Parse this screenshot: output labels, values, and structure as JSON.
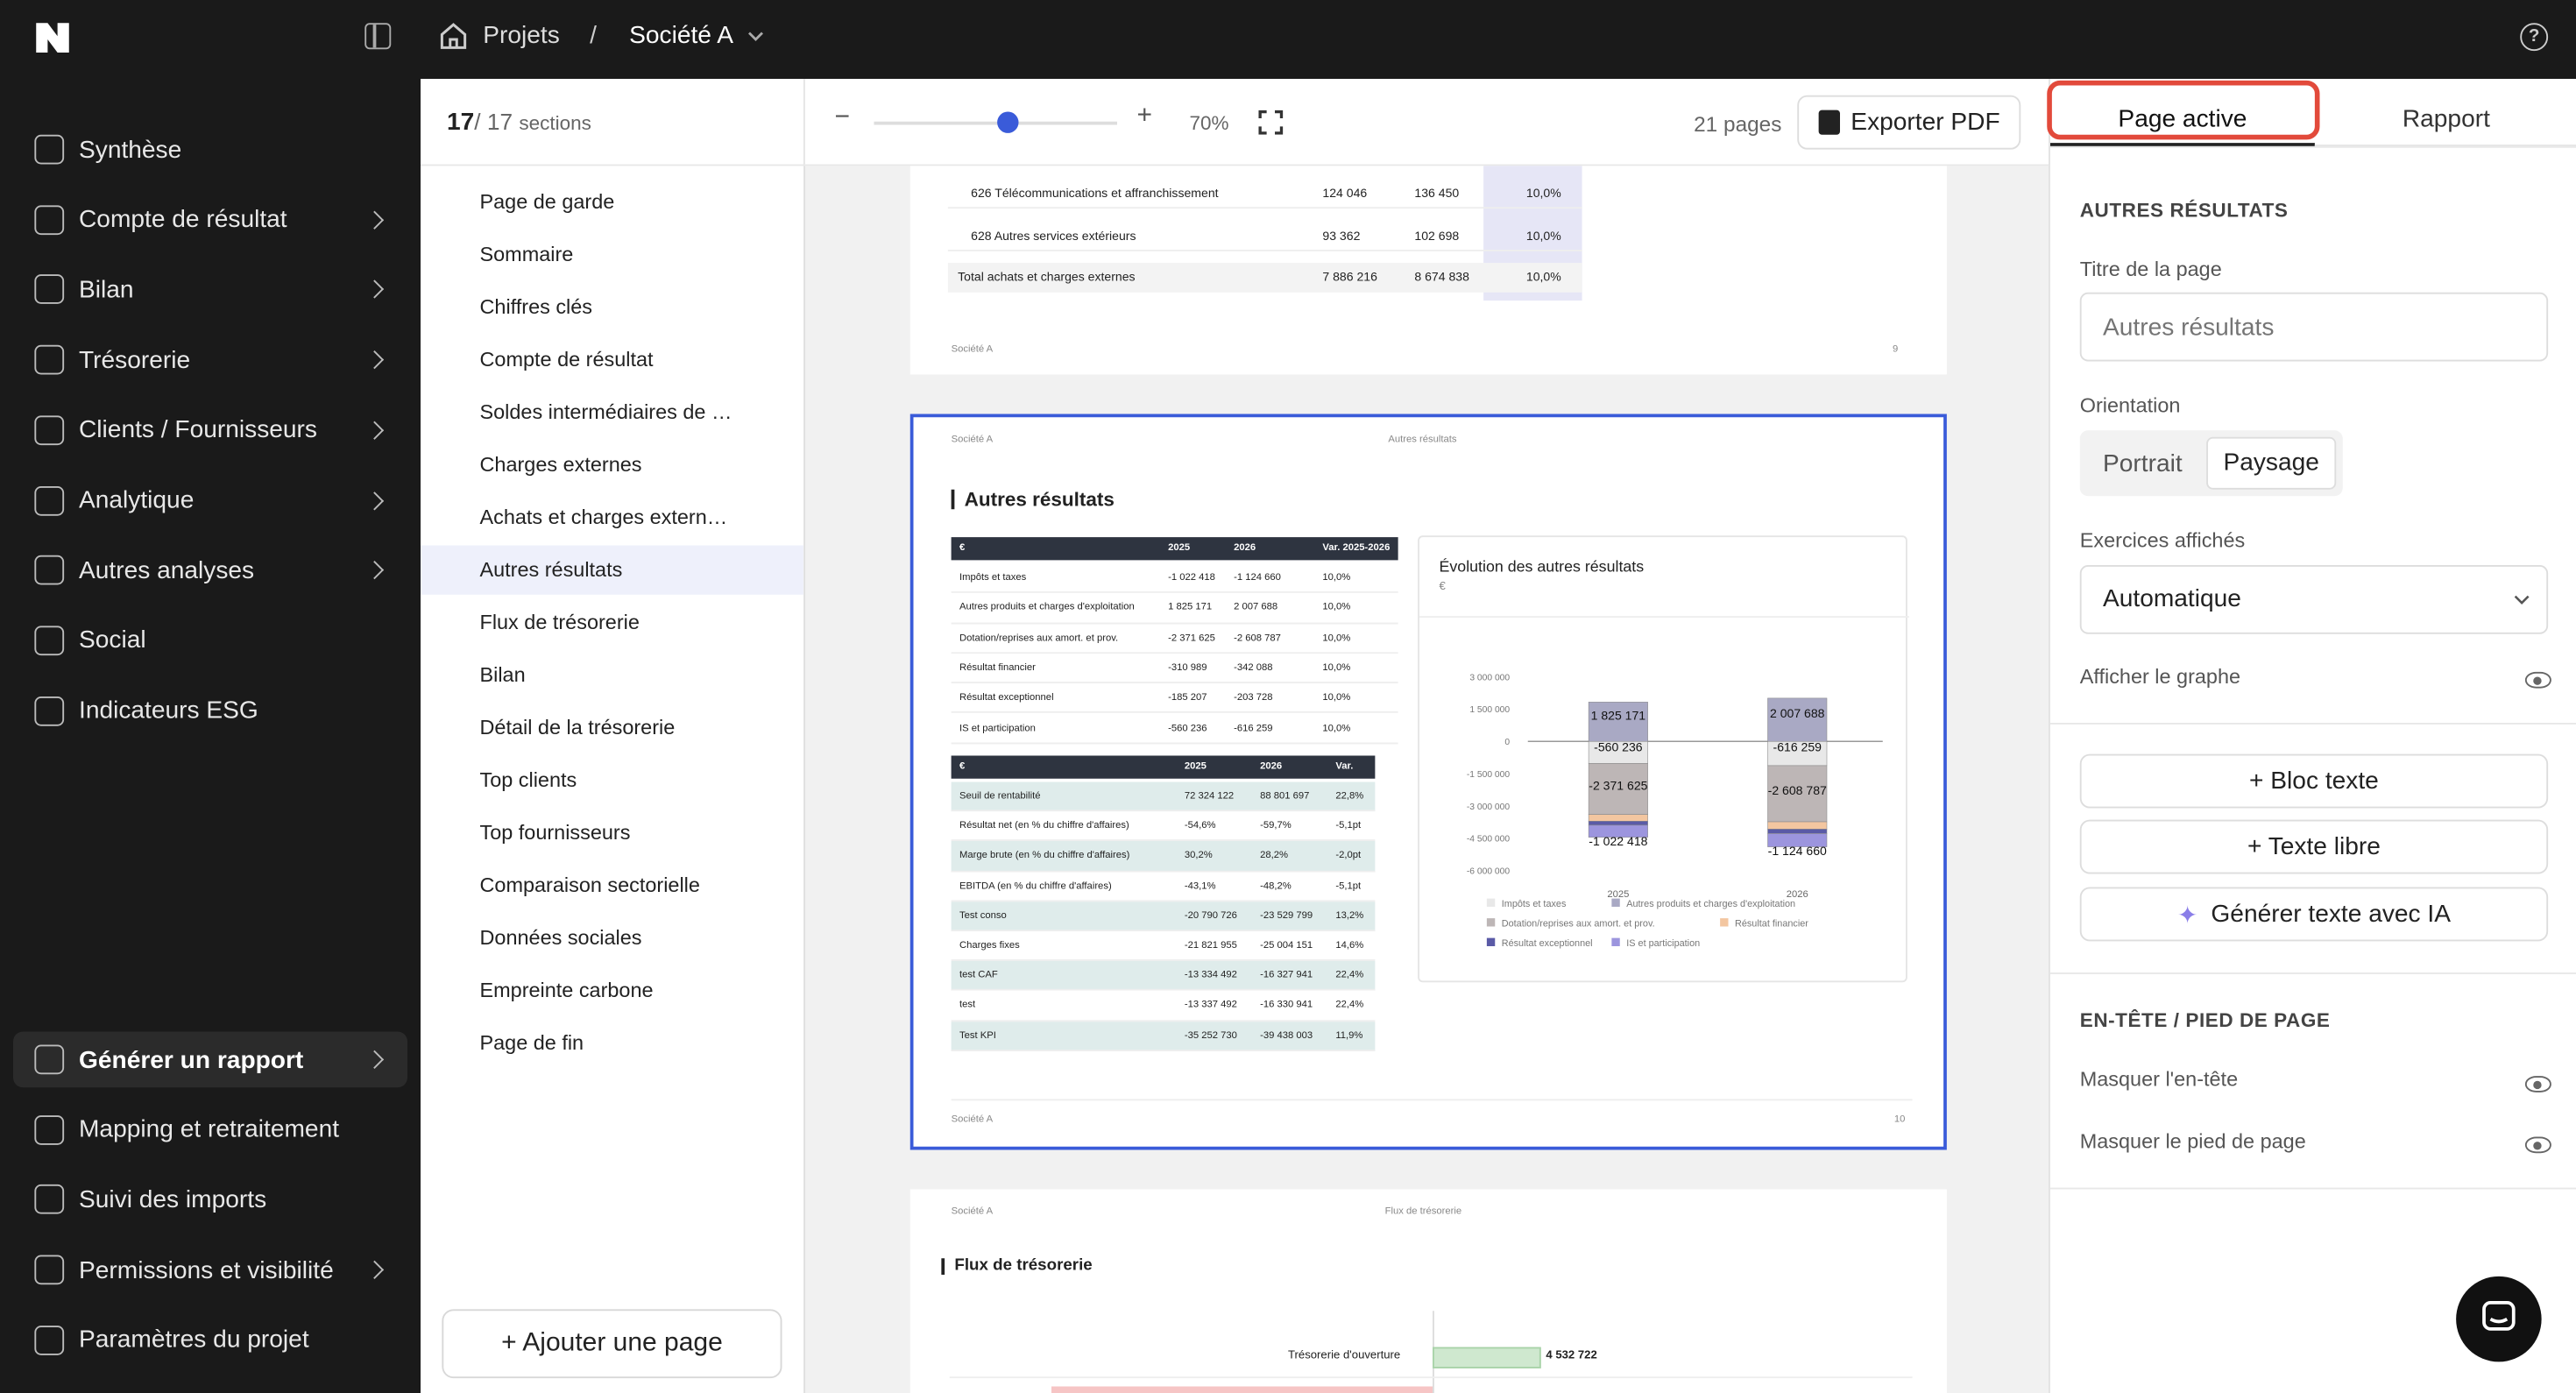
{
  "topbar": {
    "crumb_projets": "Projets",
    "crumb_sep": "/",
    "crumb_societe": "Société A",
    "help": "?"
  },
  "nav": [
    {
      "label": "Synthèse",
      "chevron": false
    },
    {
      "label": "Compte de résultat",
      "chevron": true
    },
    {
      "label": "Bilan",
      "chevron": true
    },
    {
      "label": "Trésorerie",
      "chevron": true
    },
    {
      "label": "Clients / Fournisseurs",
      "chevron": true
    },
    {
      "label": "Analytique",
      "chevron": true
    },
    {
      "label": "Autres analyses",
      "chevron": true
    },
    {
      "label": "Social",
      "chevron": false
    },
    {
      "label": "Indicateurs ESG",
      "chevron": false
    }
  ],
  "nav_bottom": [
    {
      "label": "Générer un rapport",
      "chevron": true,
      "active": true
    },
    {
      "label": "Mapping et retraitement",
      "chevron": false
    },
    {
      "label": "Suivi des imports",
      "chevron": false
    },
    {
      "label": "Permissions et visibilité",
      "chevron": true
    },
    {
      "label": "Paramètres du projet",
      "chevron": false
    }
  ],
  "sections": {
    "count": "17",
    "total": "/ 17",
    "word": "sections",
    "items": [
      "Page de garde",
      "Sommaire",
      "Chiffres clés",
      "Compte de résultat",
      "Soldes intermédiaires de …",
      "Charges externes",
      "Achats et charges extern…",
      "Autres résultats",
      "Flux de trésorerie",
      "Bilan",
      "Détail de la trésorerie",
      "Top clients",
      "Top fournisseurs",
      "Comparaison sectorielle",
      "Données sociales",
      "Empreinte carbone",
      "Page de fin"
    ],
    "active_index": 7,
    "add_page": "+ Ajouter une page"
  },
  "toolbar": {
    "minus": "−",
    "plus": "+",
    "zoom": "70%",
    "zoom_fraction": 0.55,
    "pages": "21 pages",
    "export": "Exporter PDF"
  },
  "page9": {
    "rows": [
      [
        "626 Télécommunications et affranchissement",
        "124 046",
        "136 450",
        "10,0%"
      ],
      [
        "628 Autres services extérieurs",
        "93 362",
        "102 698",
        "10,0%"
      ],
      [
        "Total achats et charges externes",
        "7 886 216",
        "8 674 838",
        "10,0%"
      ]
    ],
    "footer_left": "Société A",
    "footer_right": "9"
  },
  "page10": {
    "header_left": "Société A",
    "header_center": "Autres résultats",
    "title": "Autres résultats",
    "t1_head": [
      "€",
      "2025",
      "2026",
      "Var. 2025-2026"
    ],
    "t1_rows": [
      [
        "Impôts et taxes",
        "-1 022 418",
        "-1 124 660",
        "10,0%"
      ],
      [
        "Autres produits et charges d'exploitation",
        "1 825 171",
        "2 007 688",
        "10,0%"
      ],
      [
        "Dotation/reprises aux amort. et prov.",
        "-2 371 625",
        "-2 608 787",
        "10,0%"
      ],
      [
        "Résultat financier",
        "-310 989",
        "-342 088",
        "10,0%"
      ],
      [
        "Résultat exceptionnel",
        "-185 207",
        "-203 728",
        "10,0%"
      ],
      [
        "IS et participation",
        "-560 236",
        "-616 259",
        "10,0%"
      ]
    ],
    "t2_head": [
      "€",
      "2025",
      "2026",
      "Var."
    ],
    "t2_rows": [
      [
        "Seuil de rentabilité",
        "72 324 122",
        "88 801 697",
        "22,8%"
      ],
      [
        "Résultat net (en % du chiffre d'affaires)",
        "-54,6%",
        "-59,7%",
        "-5,1pt"
      ],
      [
        "Marge brute (en % du chiffre d'affaires)",
        "30,2%",
        "28,2%",
        "-2,0pt"
      ],
      [
        "EBITDA (en % du chiffre d'affaires)",
        "-43,1%",
        "-48,2%",
        "-5,1pt"
      ],
      [
        "Test conso",
        "-20 790 726",
        "-23 529 799",
        "13,2%"
      ],
      [
        "Charges fixes",
        "-21 821 955",
        "-25 004 151",
        "14,6%"
      ],
      [
        "test CAF",
        "-13 334 492",
        "-16 327 941",
        "22,4%"
      ],
      [
        "test",
        "-13 337 492",
        "-16 330 941",
        "22,4%"
      ],
      [
        "Test KPI",
        "-35 252 730",
        "-39 438 003",
        "11,9%"
      ]
    ],
    "footer_left": "Société A",
    "footer_right": "10"
  },
  "chart_data": {
    "type": "bar",
    "title": "Évolution des autres résultats",
    "ylabel": "€",
    "categories": [
      "2025",
      "2026"
    ],
    "yticks": [
      "3 000 000",
      "1 500 000",
      "0",
      "-1 500 000",
      "-3 000 000",
      "-4 500 000",
      "-6 000 000"
    ],
    "ylim": [
      -6000000,
      3000000
    ],
    "series": [
      {
        "name": "Impôts et taxes",
        "values": [
          -1022418,
          -1124660
        ],
        "color": "#e8e8e8"
      },
      {
        "name": "Autres produits et charges d'exploitation",
        "values": [
          1825171,
          2007688
        ],
        "color": "#a9a9c4"
      },
      {
        "name": "Dotation/reprises aux amort. et prov.",
        "values": [
          -2371625,
          -2608787
        ],
        "color": "#bdb6b6"
      },
      {
        "name": "Résultat financier",
        "values": [
          -310989,
          -342088
        ],
        "color": "#f3c6a0"
      },
      {
        "name": "Résultat exceptionnel",
        "values": [
          -185207,
          -203728
        ],
        "color": "#5a5aa6"
      },
      {
        "name": "IS et participation",
        "values": [
          -560236,
          -616259
        ],
        "color": "#9c95de"
      }
    ],
    "labels": [
      [
        "1 825 171",
        "-560 236",
        "-2 371 625",
        "-1 022 418"
      ],
      [
        "2 007 688",
        "-616 259",
        "-2 608 787",
        "-1 124 660"
      ]
    ]
  },
  "page11": {
    "header_left": "Société A",
    "header_center": "Flux de trésorerie",
    "title": "Flux de trésorerie",
    "bar_label": "Trésorerie d'ouverture",
    "bar_value": "4 532 722"
  },
  "right": {
    "tab_active": "Page active",
    "tab_rapport": "Rapport",
    "section_title": "AUTRES RÉSULTATS",
    "page_title_label": "Titre de la page",
    "page_title_placeholder": "Autres résultats",
    "orientation_label": "Orientation",
    "portrait": "Portrait",
    "paysage": "Paysage",
    "exercices_label": "Exercices affichés",
    "exercices_value": "Automatique",
    "graph_label": "Afficher le graphe",
    "btn_bloc": "+ Bloc texte",
    "btn_libre": "+ Texte libre",
    "btn_ia": "Générer texte avec IA",
    "header_footer_title": "EN-TÊTE / PIED DE PAGE",
    "hide_header": "Masquer l'en-tête",
    "hide_footer": "Masquer le pied de page"
  },
  "colors": {
    "accent": "#3a5bd9",
    "highlight": "#e24a3b"
  }
}
